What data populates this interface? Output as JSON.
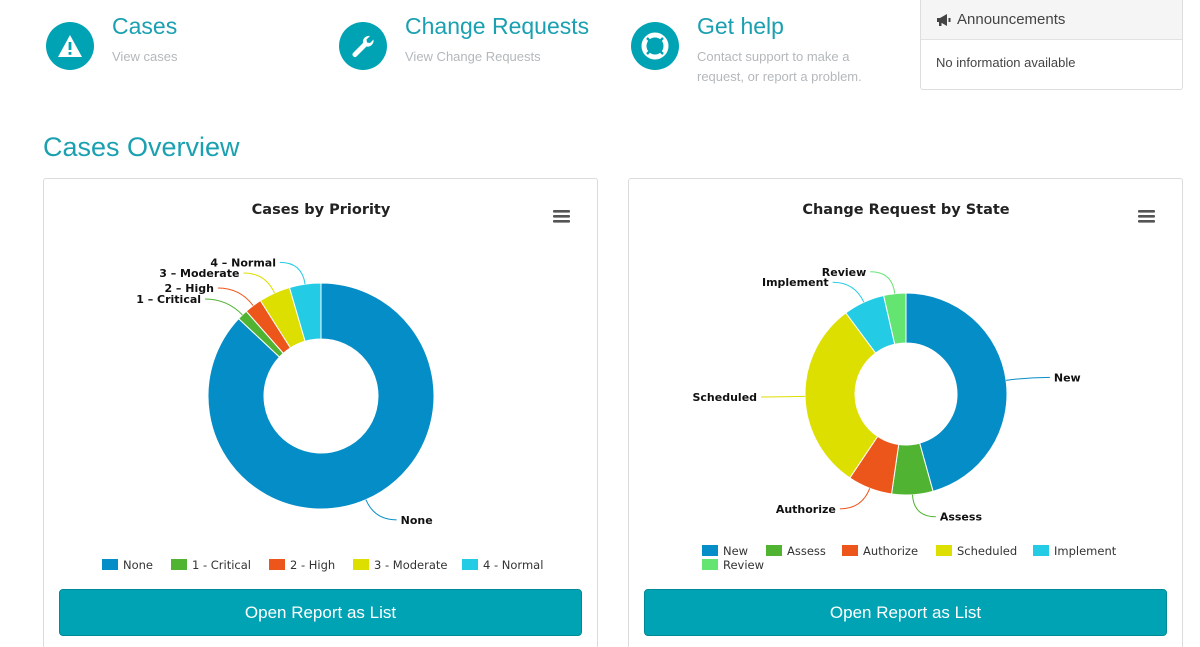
{
  "quick_links": [
    {
      "title": "Cases",
      "subtitle": "View cases",
      "icon": "warning-icon"
    },
    {
      "title": "Change Requests",
      "subtitle": "View Change Requests",
      "icon": "wrench-icon"
    },
    {
      "title": "Get help",
      "subtitle_lines": [
        "Contact support to make a",
        "request, or report a problem."
      ],
      "icon": "lifebuoy-icon"
    }
  ],
  "announcements": {
    "title": "Announcements",
    "body": "No information available",
    "icon": "megaphone-icon"
  },
  "section_title": "Cases Overview",
  "colors": {
    "accent": "#00a3b4",
    "heading": "#1aa0b0"
  },
  "chart_data": [
    {
      "type": "pie",
      "donut": true,
      "title": "Cases by Priority",
      "menu_icon": "hamburger-menu-icon",
      "categories": [
        "None",
        "1 - Critical",
        "2 - High",
        "3 - Moderate",
        "4 - Normal"
      ],
      "data_labels": [
        "None",
        "1 – Critical",
        "2 – High",
        "3 – Moderate",
        "4 – Normal"
      ],
      "values": [
        87,
        1.5,
        2.5,
        4.5,
        4.5
      ],
      "colors": [
        "#058dc7",
        "#50b432",
        "#ed561b",
        "#dddf00",
        "#24cbe5"
      ],
      "legend_position": "bottom-center",
      "button_label": "Open Report as List"
    },
    {
      "type": "pie",
      "donut": true,
      "title": "Change Request by State",
      "menu_icon": "hamburger-menu-icon",
      "categories": [
        "New",
        "Assess",
        "Authorize",
        "Scheduled",
        "Implement",
        "Review"
      ],
      "data_labels": [
        "New",
        "Assess",
        "Authorize",
        "Scheduled",
        "Implement",
        "Review"
      ],
      "values": [
        45,
        6.5,
        7,
        30,
        6.5,
        3.5
      ],
      "colors": [
        "#058dc7",
        "#50b432",
        "#ed561b",
        "#dddf00",
        "#24cbe5",
        "#64e572"
      ],
      "legend_position": "bottom-center",
      "button_label": "Open Report as List"
    }
  ]
}
